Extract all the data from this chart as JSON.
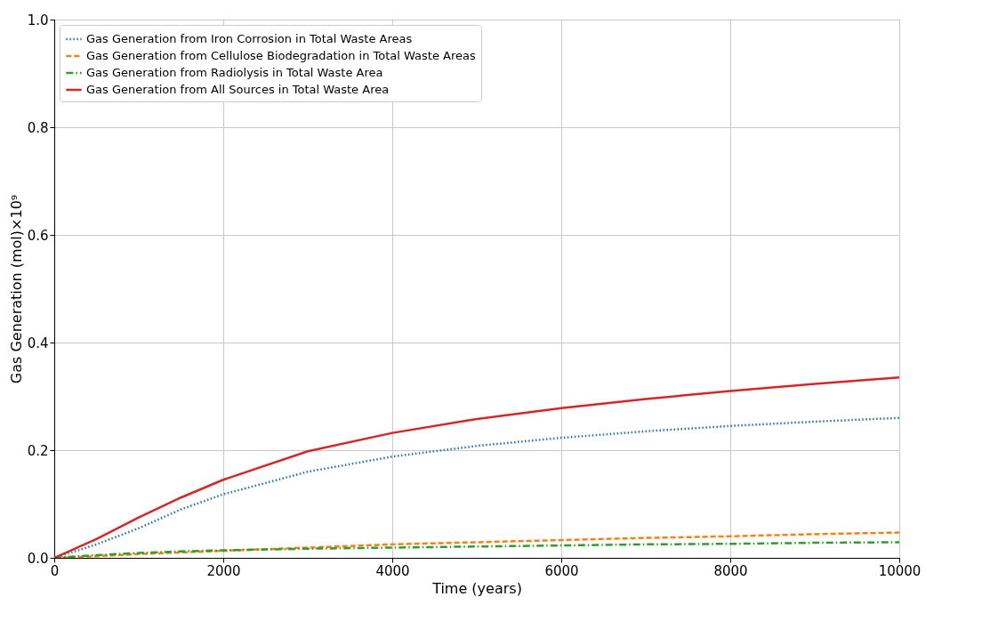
{
  "chart_data": {
    "type": "line",
    "xlabel": "Time (years)",
    "ylabel": "Gas Generation (mol)×10⁹",
    "x": [
      0,
      500,
      1000,
      1500,
      2000,
      3000,
      4000,
      5000,
      6000,
      7000,
      8000,
      9000,
      10000
    ],
    "series": [
      {
        "name": "Gas Generation from Iron Corrosion in Total Waste Areas",
        "color": "#1f77b4",
        "line_style": "dotted",
        "values": [
          0,
          0.025,
          0.055,
          0.09,
          0.118,
          0.16,
          0.188,
          0.208,
          0.223,
          0.235,
          0.245,
          0.253,
          0.26
        ]
      },
      {
        "name": "Gas Generation from Cellulose Biodegradation in Total Waste Areas",
        "color": "#ff7f0e",
        "line_style": "dashed",
        "values": [
          0,
          0.003,
          0.007,
          0.01,
          0.013,
          0.019,
          0.025,
          0.029,
          0.033,
          0.037,
          0.04,
          0.044,
          0.047
        ]
      },
      {
        "name": "Gas Generation from Radiolysis in Total Waste Area",
        "color": "#2ca02c",
        "line_style": "dashdot",
        "values": [
          0,
          0.005,
          0.009,
          0.012,
          0.014,
          0.017,
          0.019,
          0.021,
          0.023,
          0.025,
          0.026,
          0.028,
          0.029
        ]
      },
      {
        "name": "Gas Generation from All Sources in Total Waste Area",
        "color": "#d62728",
        "line_style": "solid",
        "values": [
          0,
          0.035,
          0.075,
          0.112,
          0.145,
          0.198,
          0.232,
          0.258,
          0.278,
          0.295,
          0.31,
          0.323,
          0.335
        ]
      }
    ],
    "xlim": [
      0,
      10000
    ],
    "xticks": [
      0,
      2000,
      4000,
      6000,
      8000,
      10000
    ],
    "ylim": [
      0.0,
      1.0
    ],
    "yticks": [
      {
        "value": 0,
        "label": "0.0"
      },
      0.2,
      0.4,
      0.6,
      0.8,
      {
        "value": 1,
        "label": "1.0"
      }
    ],
    "grid": true,
    "legend": "top left"
  }
}
